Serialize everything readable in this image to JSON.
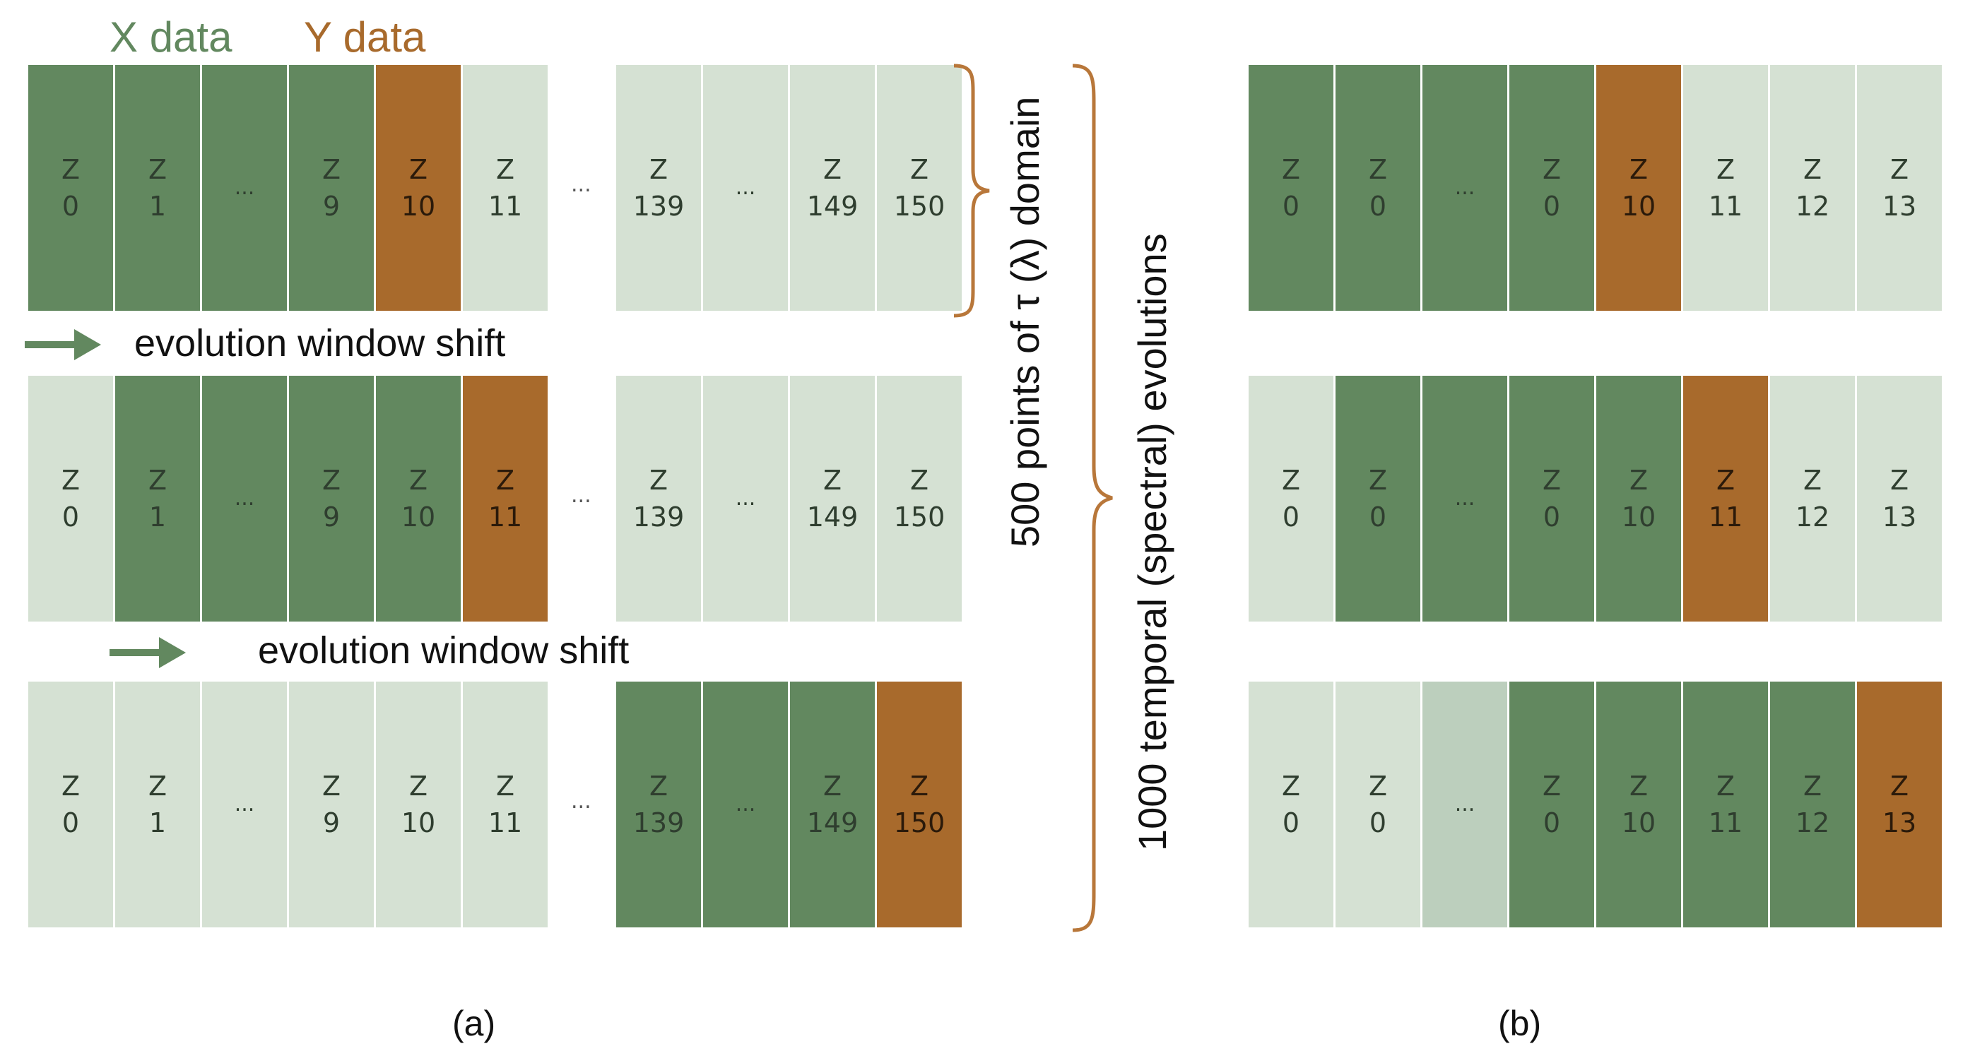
{
  "legend": {
    "x_label": "X data",
    "y_label": "Y data",
    "x_color": "#62885f",
    "y_color": "#a86a2c"
  },
  "shift_label": "evolution window shift",
  "brace_labels": {
    "points": "500 points of τ (λ) domain",
    "evolutions": "1000 temporal (spectral) evolutions"
  },
  "captions": {
    "a": "(a)",
    "b": "(b)"
  },
  "ellipsis": "...",
  "panel_a": {
    "rows": [
      {
        "left": [
          {
            "t": "Z",
            "n": "0",
            "k": "x"
          },
          {
            "t": "Z",
            "n": "1",
            "k": "x"
          },
          {
            "t": "...",
            "n": "",
            "k": "x"
          },
          {
            "t": "Z",
            "n": "9",
            "k": "x"
          },
          {
            "t": "Z",
            "n": "10",
            "k": "y"
          },
          {
            "t": "Z",
            "n": "11",
            "k": "bg"
          }
        ],
        "right": [
          {
            "t": "Z",
            "n": "139",
            "k": "bg"
          },
          {
            "t": "...",
            "n": "",
            "k": "bg"
          },
          {
            "t": "Z",
            "n": "149",
            "k": "bg"
          },
          {
            "t": "Z",
            "n": "150",
            "k": "bg"
          }
        ]
      },
      {
        "left": [
          {
            "t": "Z",
            "n": "0",
            "k": "bg"
          },
          {
            "t": "Z",
            "n": "1",
            "k": "x"
          },
          {
            "t": "...",
            "n": "",
            "k": "x"
          },
          {
            "t": "Z",
            "n": "9",
            "k": "x"
          },
          {
            "t": "Z",
            "n": "10",
            "k": "x"
          },
          {
            "t": "Z",
            "n": "11",
            "k": "y"
          }
        ],
        "right": [
          {
            "t": "Z",
            "n": "139",
            "k": "bg"
          },
          {
            "t": "...",
            "n": "",
            "k": "bg"
          },
          {
            "t": "Z",
            "n": "149",
            "k": "bg"
          },
          {
            "t": "Z",
            "n": "150",
            "k": "bg"
          }
        ]
      },
      {
        "left": [
          {
            "t": "Z",
            "n": "0",
            "k": "bg"
          },
          {
            "t": "Z",
            "n": "1",
            "k": "bg"
          },
          {
            "t": "...",
            "n": "",
            "k": "bg"
          },
          {
            "t": "Z",
            "n": "9",
            "k": "bg"
          },
          {
            "t": "Z",
            "n": "10",
            "k": "bg"
          },
          {
            "t": "Z",
            "n": "11",
            "k": "bg"
          }
        ],
        "right": [
          {
            "t": "Z",
            "n": "139",
            "k": "x"
          },
          {
            "t": "...",
            "n": "",
            "k": "x"
          },
          {
            "t": "Z",
            "n": "149",
            "k": "x"
          },
          {
            "t": "Z",
            "n": "150",
            "k": "y"
          }
        ]
      }
    ]
  },
  "panel_b": {
    "rows": [
      [
        {
          "t": "Z",
          "n": "0",
          "k": "x"
        },
        {
          "t": "Z",
          "n": "0",
          "k": "x"
        },
        {
          "t": "...",
          "n": "",
          "k": "x"
        },
        {
          "t": "Z",
          "n": "0",
          "k": "x"
        },
        {
          "t": "Z",
          "n": "10",
          "k": "y"
        },
        {
          "t": "Z",
          "n": "11",
          "k": "bg"
        },
        {
          "t": "Z",
          "n": "12",
          "k": "bg"
        },
        {
          "t": "Z",
          "n": "13",
          "k": "bg"
        }
      ],
      [
        {
          "t": "Z",
          "n": "0",
          "k": "bg"
        },
        {
          "t": "Z",
          "n": "0",
          "k": "x"
        },
        {
          "t": "...",
          "n": "",
          "k": "x"
        },
        {
          "t": "Z",
          "n": "0",
          "k": "x"
        },
        {
          "t": "Z",
          "n": "10",
          "k": "x"
        },
        {
          "t": "Z",
          "n": "11",
          "k": "y"
        },
        {
          "t": "Z",
          "n": "12",
          "k": "bg"
        },
        {
          "t": "Z",
          "n": "13",
          "k": "bg"
        }
      ],
      [
        {
          "t": "Z",
          "n": "0",
          "k": "bg"
        },
        {
          "t": "Z",
          "n": "0",
          "k": "bg"
        },
        {
          "t": "...",
          "n": "",
          "k": "bg2"
        },
        {
          "t": "Z",
          "n": "0",
          "k": "x"
        },
        {
          "t": "Z",
          "n": "10",
          "k": "x"
        },
        {
          "t": "Z",
          "n": "11",
          "k": "x"
        },
        {
          "t": "Z",
          "n": "12",
          "k": "x"
        },
        {
          "t": "Z",
          "n": "13",
          "k": "y"
        }
      ]
    ]
  }
}
